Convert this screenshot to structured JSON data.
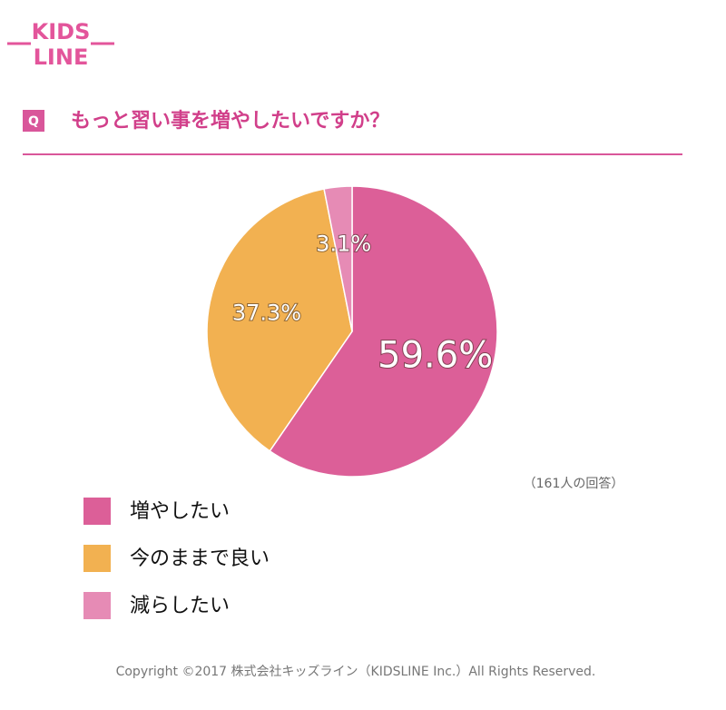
{
  "logo": [
    "KIDS",
    "LINE"
  ],
  "badge": "Q",
  "note": "（161人の回答）",
  "footer": "Copyright ©2017 株式会社キッズライン（KIDSLINE Inc.）All Rights Reserved.",
  "chart_data": {
    "type": "pie",
    "title": "もっと習い事を増やしたいですか？",
    "categories": [
      "増やしたい",
      "今のままで良い",
      "減らしたい"
    ],
    "values": [
      59.6,
      37.3,
      3.1
    ],
    "value_labels": [
      "59.6%",
      "37.3%",
      "3.1%"
    ],
    "colors": [
      "#dc5f98",
      "#f2b151",
      "#e68bb5"
    ]
  }
}
